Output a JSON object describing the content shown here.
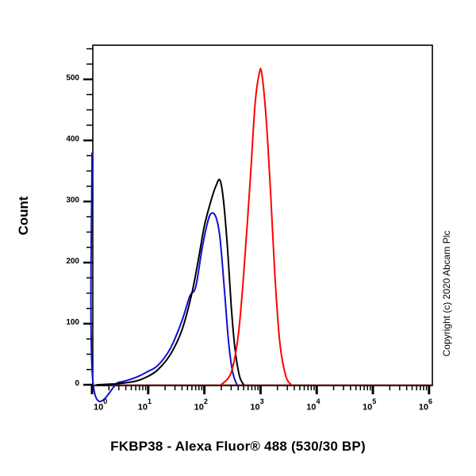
{
  "chart_data": {
    "type": "line",
    "title": "",
    "xlabel": "FKBP38 - Alexa Fluor® 488 (530/30 BP)",
    "ylabel": "Count",
    "xscale": "log",
    "xlim": [
      1,
      1000000
    ],
    "ylim": [
      0,
      560
    ],
    "x_tick_labels": [
      "10^0",
      "10^1",
      "10^2",
      "10^3",
      "10^4",
      "10^5",
      "10^6"
    ],
    "y_tick_labels": [
      "0",
      "100",
      "200",
      "300",
      "400",
      "500"
    ],
    "grid": false,
    "legend": null,
    "annotation": "Copyright (c) 2020 Abcam Plc",
    "series": [
      {
        "name": "black",
        "color": "#000000",
        "peak_x": 200,
        "peak_y": 335,
        "points": [
          [
            1.2,
            0
          ],
          [
            3,
            2
          ],
          [
            6,
            6
          ],
          [
            10,
            14
          ],
          [
            15,
            25
          ],
          [
            25,
            50
          ],
          [
            40,
            90
          ],
          [
            60,
            150
          ],
          [
            80,
            210
          ],
          [
            100,
            260
          ],
          [
            130,
            300
          ],
          [
            160,
            325
          ],
          [
            190,
            335
          ],
          [
            220,
            300
          ],
          [
            260,
            220
          ],
          [
            300,
            130
          ],
          [
            350,
            60
          ],
          [
            420,
            15
          ],
          [
            500,
            0
          ]
        ]
      },
      {
        "name": "blue",
        "color": "#1010d0",
        "peak_x": 150,
        "peak_y": 285,
        "points": [
          [
            1,
            380
          ],
          [
            1.05,
            0
          ],
          [
            3,
            4
          ],
          [
            6,
            12
          ],
          [
            10,
            22
          ],
          [
            15,
            32
          ],
          [
            25,
            60
          ],
          [
            40,
            105
          ],
          [
            55,
            145
          ],
          [
            70,
            160
          ],
          [
            90,
            220
          ],
          [
            110,
            260
          ],
          [
            130,
            280
          ],
          [
            160,
            275
          ],
          [
            190,
            240
          ],
          [
            230,
            150
          ],
          [
            270,
            70
          ],
          [
            320,
            20
          ],
          [
            380,
            0
          ]
        ]
      },
      {
        "name": "red",
        "color": "#ff0000",
        "peak_x": 1000,
        "peak_y": 512,
        "points": [
          [
            200,
            0
          ],
          [
            300,
            20
          ],
          [
            400,
            80
          ],
          [
            500,
            180
          ],
          [
            650,
            330
          ],
          [
            800,
            460
          ],
          [
            950,
            510
          ],
          [
            1050,
            510
          ],
          [
            1250,
            440
          ],
          [
            1500,
            320
          ],
          [
            1800,
            180
          ],
          [
            2200,
            70
          ],
          [
            2800,
            15
          ],
          [
            3500,
            0
          ]
        ]
      }
    ]
  },
  "axes": {
    "y_ticks": [
      "0",
      "100",
      "200",
      "300",
      "400",
      "500"
    ],
    "x_ticks": [
      {
        "base": "10",
        "exp": "0"
      },
      {
        "base": "10",
        "exp": "1"
      },
      {
        "base": "10",
        "exp": "2"
      },
      {
        "base": "10",
        "exp": "3"
      },
      {
        "base": "10",
        "exp": "4"
      },
      {
        "base": "10",
        "exp": "5"
      },
      {
        "base": "10",
        "exp": "6"
      }
    ],
    "ylabel": "Count",
    "xlabel": "FKBP38 - Alexa Fluor® 488 (530/30 BP)"
  },
  "copyright": "Copyright (c) 2020 Abcam Plc",
  "colors": {
    "black_series": "#000000",
    "blue_series": "#1010d0",
    "red_series": "#ff0000",
    "axis": "#000000",
    "baseline": "#8b2a2a"
  }
}
